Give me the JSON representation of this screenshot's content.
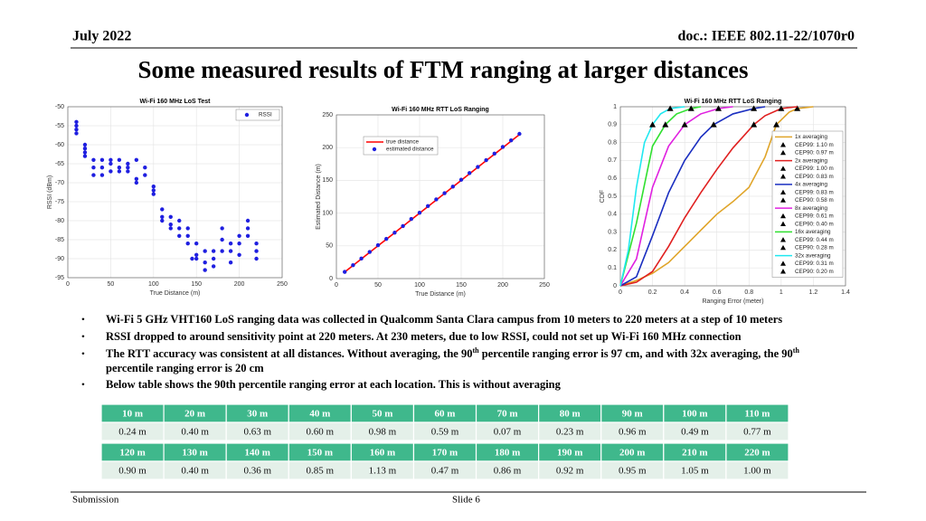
{
  "header": {
    "date": "July 2022",
    "doc": "doc.: IEEE 802.11-22/1070r0"
  },
  "title": "Some measured results of FTM ranging at larger distances",
  "chart_data": [
    {
      "type": "scatter",
      "title": "Wi-Fi 160 MHz LoS Test",
      "xlabel": "True Distance (m)",
      "ylabel": "RSSI (dBm)",
      "xlim": [
        0,
        250
      ],
      "xticks": [
        0,
        50,
        100,
        150,
        200,
        250
      ],
      "ylim": [
        -95,
        -50
      ],
      "yticks": [
        -95,
        -90,
        -85,
        -80,
        -75,
        -70,
        -65,
        -60,
        -55,
        -50
      ],
      "grid": true,
      "legend": "upper right",
      "x": [
        10,
        10,
        10,
        10,
        20,
        20,
        20,
        20,
        30,
        30,
        30,
        40,
        40,
        40,
        50,
        50,
        50,
        60,
        60,
        60,
        70,
        70,
        70,
        80,
        80,
        80,
        90,
        90,
        100,
        100,
        100,
        110,
        110,
        110,
        120,
        120,
        120,
        130,
        130,
        130,
        140,
        140,
        140,
        145,
        150,
        150,
        150,
        160,
        160,
        160,
        170,
        170,
        170,
        180,
        180,
        180,
        190,
        190,
        190,
        200,
        200,
        200,
        210,
        210,
        210,
        220,
        220,
        220
      ],
      "series": [
        {
          "name": "RSSI",
          "color": "#1f1fe0",
          "values": [
            -54,
            -55,
            -56,
            -57,
            -60,
            -61,
            -62,
            -63,
            -64,
            -66,
            -68,
            -64,
            -66,
            -68,
            -64,
            -65,
            -67,
            -64,
            -66,
            -67,
            -65,
            -66,
            -67,
            -64,
            -69,
            -70,
            -66,
            -68,
            -71,
            -72,
            -73,
            -77,
            -79,
            -80,
            -79,
            -81,
            -82,
            -80,
            -82,
            -84,
            -82,
            -84,
            -86,
            -90,
            -86,
            -89,
            -90,
            -88,
            -91,
            -93,
            -88,
            -90,
            -92,
            -82,
            -85,
            -88,
            -86,
            -88,
            -91,
            -84,
            -86,
            -89,
            -80,
            -82,
            -84,
            -86,
            -88,
            -90
          ]
        }
      ]
    },
    {
      "type": "line",
      "title": "Wi-Fi 160 MHz RTT LoS Ranging",
      "xlabel": "True Distance (m)",
      "ylabel": "Estimated Distance (m)",
      "xlim": [
        0,
        250
      ],
      "xticks": [
        0,
        50,
        100,
        150,
        200,
        250
      ],
      "ylim": [
        0,
        250
      ],
      "yticks": [
        0,
        50,
        100,
        150,
        200,
        250
      ],
      "grid": true,
      "legend": "upper left",
      "x": [
        10,
        20,
        30,
        40,
        50,
        60,
        70,
        80,
        90,
        100,
        110,
        120,
        130,
        140,
        150,
        160,
        170,
        180,
        190,
        200,
        210,
        220
      ],
      "series": [
        {
          "name": "true distance",
          "color": "#ff0000",
          "style": "line",
          "values": [
            10,
            20,
            30,
            40,
            50,
            60,
            70,
            80,
            90,
            100,
            110,
            120,
            130,
            140,
            150,
            160,
            170,
            180,
            190,
            200,
            210,
            220
          ]
        },
        {
          "name": "estimated distance",
          "color": "#1f1fe0",
          "style": "markers",
          "values": [
            10.2,
            20.4,
            30.6,
            40.6,
            51,
            60.6,
            70.1,
            80.2,
            91,
            100.5,
            110.8,
            120.9,
            130.4,
            140.4,
            150.9,
            161.1,
            170.5,
            180.9,
            190.9,
            201,
            211.1,
            221
          ]
        }
      ]
    },
    {
      "type": "line",
      "title": "Wi-Fi 160 MHz RTT LoS Ranging",
      "xlabel": "Ranging Error (meter)",
      "ylabel": "CDF",
      "xlim": [
        0,
        1.4
      ],
      "xticks": [
        0,
        0.2,
        0.4,
        0.6,
        0.8,
        1,
        1.2,
        1.4
      ],
      "ylim": [
        0,
        1
      ],
      "yticks": [
        0,
        0.1,
        0.2,
        0.3,
        0.4,
        0.5,
        0.6,
        0.7,
        0.8,
        0.9,
        1
      ],
      "grid": true,
      "legend": "right",
      "series": [
        {
          "name": "1x averaging",
          "color": "#e0a52a",
          "x": [
            0,
            0.1,
            0.2,
            0.3,
            0.4,
            0.5,
            0.6,
            0.7,
            0.8,
            0.9,
            0.97,
            1.05,
            1.1,
            1.2
          ],
          "values": [
            0,
            0.03,
            0.07,
            0.13,
            0.22,
            0.31,
            0.4,
            0.47,
            0.55,
            0.72,
            0.9,
            0.97,
            0.99,
            1
          ],
          "markers": [
            {
              "name": "CEP99: 1.10 m",
              "x": 1.1,
              "y": 0.99
            },
            {
              "name": "CEP90: 0.97 m",
              "x": 0.97,
              "y": 0.9
            }
          ]
        },
        {
          "name": "2x averaging",
          "color": "#e02020",
          "x": [
            0,
            0.1,
            0.2,
            0.3,
            0.4,
            0.5,
            0.6,
            0.7,
            0.83,
            0.9,
            1,
            1.1
          ],
          "values": [
            0,
            0.02,
            0.08,
            0.22,
            0.38,
            0.52,
            0.65,
            0.77,
            0.9,
            0.95,
            0.99,
            1
          ],
          "markers": [
            {
              "name": "CEP99: 1.00 m",
              "x": 1,
              "y": 0.99
            },
            {
              "name": "CEP90: 0.83 m",
              "x": 0.83,
              "y": 0.9
            }
          ]
        },
        {
          "name": "4x averaging",
          "color": "#1a2ec0",
          "x": [
            0,
            0.1,
            0.2,
            0.3,
            0.4,
            0.5,
            0.58,
            0.7,
            0.83,
            0.9
          ],
          "values": [
            0,
            0.05,
            0.28,
            0.52,
            0.7,
            0.83,
            0.9,
            0.96,
            0.99,
            1
          ],
          "markers": [
            {
              "name": "CEP99: 0.83 m",
              "x": 0.83,
              "y": 0.99
            },
            {
              "name": "CEP90: 0.58 m",
              "x": 0.58,
              "y": 0.9
            }
          ]
        },
        {
          "name": "8x averaging",
          "color": "#e020e0",
          "x": [
            0,
            0.1,
            0.2,
            0.3,
            0.4,
            0.5,
            0.61,
            0.7
          ],
          "values": [
            0,
            0.15,
            0.55,
            0.78,
            0.9,
            0.96,
            0.99,
            1
          ],
          "markers": [
            {
              "name": "CEP99: 0.61 m",
              "x": 0.61,
              "y": 0.99
            },
            {
              "name": "CEP90: 0.40 m",
              "x": 0.4,
              "y": 0.9
            }
          ]
        },
        {
          "name": "16x averaging",
          "color": "#30e030",
          "x": [
            0,
            0.1,
            0.2,
            0.28,
            0.35,
            0.44,
            0.5
          ],
          "values": [
            0,
            0.35,
            0.78,
            0.9,
            0.96,
            0.99,
            1
          ],
          "markers": [
            {
              "name": "CEP99: 0.44 m",
              "x": 0.44,
              "y": 0.99
            },
            {
              "name": "CEP90: 0.28 m",
              "x": 0.28,
              "y": 0.9
            }
          ]
        },
        {
          "name": "32x averaging",
          "color": "#20e8f0",
          "x": [
            0,
            0.05,
            0.1,
            0.15,
            0.2,
            0.25,
            0.31,
            0.4
          ],
          "values": [
            0,
            0.2,
            0.55,
            0.8,
            0.9,
            0.96,
            0.99,
            1
          ],
          "markers": [
            {
              "name": "CEP99: 0.31 m",
              "x": 0.31,
              "y": 0.99
            },
            {
              "name": "CEP90: 0.20 m",
              "x": 0.2,
              "y": 0.9
            }
          ]
        }
      ]
    }
  ],
  "bullets": [
    [
      "Wi-Fi 5 GHz VHT160 LoS ranging data was collected in Qualcomm Santa Clara campus from 10 meters to 220 meters at a step of 10 meters"
    ],
    [
      "RSSI dropped to around sensitivity point at 220 meters. At 230 meters, due to low RSSI, could not set up Wi-Fi 160 MHz connection"
    ],
    [
      "The RTT accuracy was consistent at all distances. Without averaging, the 90",
      "th",
      " percentile ranging error is 97 cm, and with 32x averaging, the 90",
      "th",
      "percentile ranging error is 20 cm"
    ],
    [
      "Below table shows the 90th percentile ranging error at each location. This is without averaging"
    ]
  ],
  "table": {
    "blocks": [
      {
        "header": [
          "10 m",
          "20 m",
          "30 m",
          "40 m",
          "50 m",
          "60 m",
          "70 m",
          "80 m",
          "90 m",
          "100 m",
          "110 m"
        ],
        "values": [
          "0.24 m",
          "0.40 m",
          "0.63 m",
          "0.60 m",
          "0.98 m",
          "0.59 m",
          "0.07 m",
          "0.23 m",
          "0.96 m",
          "0.49 m",
          "0.77 m"
        ]
      },
      {
        "header": [
          "120 m",
          "130 m",
          "140 m",
          "150 m",
          "160 m",
          "170 m",
          "180 m",
          "190 m",
          "200 m",
          "210 m",
          "220 m"
        ],
        "values": [
          "0.90 m",
          "0.40 m",
          "0.36 m",
          "0.85 m",
          "1.13 m",
          "0.47 m",
          "0.86 m",
          "0.92 m",
          "0.95 m",
          "1.05 m",
          "1.00 m"
        ]
      }
    ]
  },
  "footer": {
    "left": "Submission",
    "center": "Slide 6"
  }
}
